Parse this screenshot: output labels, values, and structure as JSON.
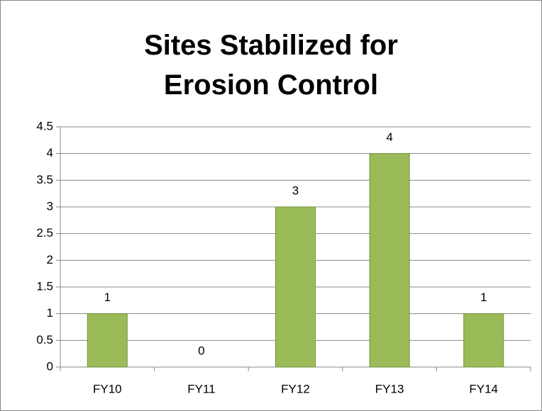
{
  "chart_data": {
    "type": "bar",
    "title": "Sites Stabilized for Erosion Control",
    "categories": [
      "FY10",
      "FY11",
      "FY12",
      "FY13",
      "FY14"
    ],
    "values": [
      1,
      0,
      3,
      4,
      1
    ],
    "color": "#9bbb59",
    "ylim": [
      0,
      4.5
    ],
    "yticks": [
      0,
      0.5,
      1,
      1.5,
      2,
      2.5,
      3,
      3.5,
      4,
      4.5
    ],
    "grid": true
  }
}
